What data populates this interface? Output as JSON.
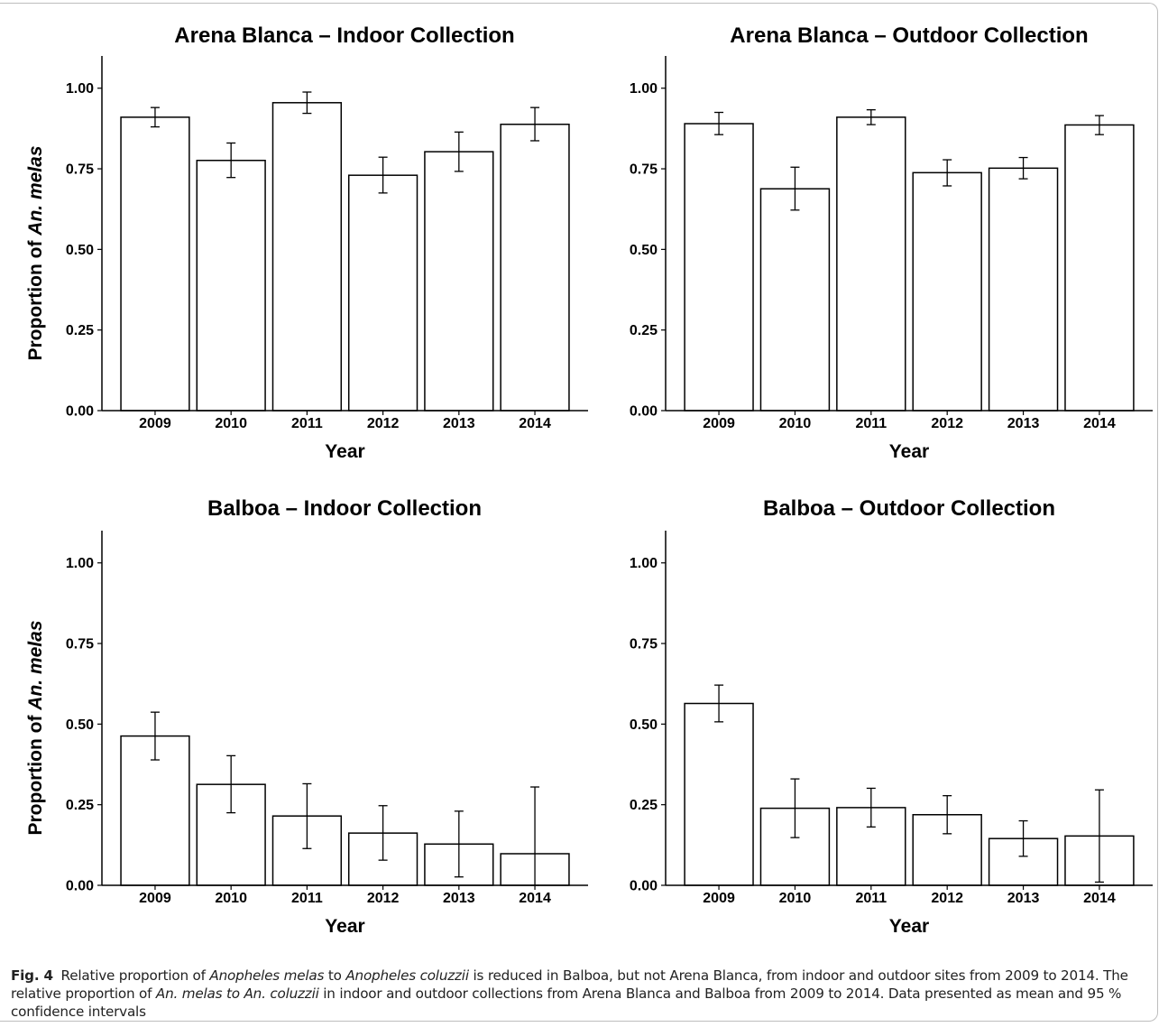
{
  "chart_data": [
    {
      "type": "bar",
      "title": "Arena Blanca – Indoor Collection",
      "xlabel": "Year",
      "ylabel_prefix": "Proportion of ",
      "ylabel_italic": "An. melas",
      "categories": [
        "2009",
        "2010",
        "2011",
        "2012",
        "2013",
        "2014"
      ],
      "values": [
        0.91,
        0.776,
        0.955,
        0.73,
        0.803,
        0.888
      ],
      "ci_low": [
        0.88,
        0.723,
        0.922,
        0.675,
        0.742,
        0.837
      ],
      "ci_high": [
        0.94,
        0.83,
        0.988,
        0.786,
        0.864,
        0.94
      ],
      "ylim": [
        0,
        1.1
      ],
      "yticks": [
        "0.00",
        "0.25",
        "0.50",
        "0.75",
        "1.00"
      ],
      "grid": false
    },
    {
      "type": "bar",
      "title": "Arena Blanca – Outdoor Collection",
      "xlabel": "Year",
      "ylabel_prefix": "",
      "ylabel_italic": "",
      "categories": [
        "2009",
        "2010",
        "2011",
        "2012",
        "2013",
        "2014"
      ],
      "values": [
        0.89,
        0.688,
        0.91,
        0.738,
        0.752,
        0.886
      ],
      "ci_low": [
        0.856,
        0.622,
        0.887,
        0.697,
        0.719,
        0.856
      ],
      "ci_high": [
        0.925,
        0.755,
        0.933,
        0.778,
        0.785,
        0.915
      ],
      "ylim": [
        0,
        1.1
      ],
      "yticks": [
        "0.00",
        "0.25",
        "0.50",
        "0.75",
        "1.00"
      ],
      "grid": false
    },
    {
      "type": "bar",
      "title": "Balboa – Indoor Collection",
      "xlabel": "Year",
      "ylabel_prefix": "Proportion of ",
      "ylabel_italic": "An. melas",
      "categories": [
        "2009",
        "2010",
        "2011",
        "2012",
        "2013",
        "2014"
      ],
      "values": [
        0.463,
        0.313,
        0.215,
        0.162,
        0.128,
        0.098
      ],
      "ci_low": [
        0.389,
        0.225,
        0.114,
        0.078,
        0.026,
        0.0
      ],
      "ci_high": [
        0.537,
        0.402,
        0.315,
        0.247,
        0.23,
        0.305
      ],
      "ylim": [
        0,
        1.1
      ],
      "yticks": [
        "0.00",
        "0.25",
        "0.50",
        "0.75",
        "1.00"
      ],
      "grid": false
    },
    {
      "type": "bar",
      "title": "Balboa – Outdoor Collection",
      "xlabel": "Year",
      "ylabel_prefix": "",
      "ylabel_italic": "",
      "categories": [
        "2009",
        "2010",
        "2011",
        "2012",
        "2013",
        "2014"
      ],
      "values": [
        0.564,
        0.239,
        0.241,
        0.219,
        0.145,
        0.153
      ],
      "ci_low": [
        0.507,
        0.148,
        0.181,
        0.16,
        0.09,
        0.01
      ],
      "ci_high": [
        0.621,
        0.33,
        0.301,
        0.278,
        0.2,
        0.296
      ],
      "ylim": [
        0,
        1.1
      ],
      "yticks": [
        "0.00",
        "0.25",
        "0.50",
        "0.75",
        "1.00"
      ],
      "grid": false
    }
  ],
  "caption": {
    "label": "Fig. 4",
    "segments": [
      {
        "text": "Relative proportion of ",
        "italic": false
      },
      {
        "text": "Anopheles melas",
        "italic": true
      },
      {
        "text": " to ",
        "italic": false
      },
      {
        "text": "Anopheles coluzzii",
        "italic": true
      },
      {
        "text": " is reduced in Balboa, but not Arena Blanca, from indoor and outdoor sites from 2009 to 2014. The relative proportion of ",
        "italic": false
      },
      {
        "text": "An. melas to An. coluzzii",
        "italic": true
      },
      {
        "text": " in indoor and outdoor collections from Arena Blanca and Balboa from 2009 to 2014. Data presented as mean and 95 % confidence intervals",
        "italic": false
      }
    ]
  }
}
